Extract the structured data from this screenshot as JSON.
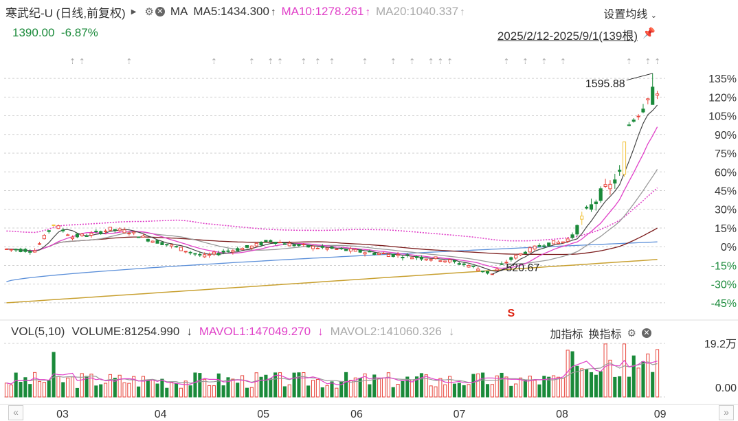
{
  "header": {
    "title": "寒武纪-U (日线,前复权)",
    "ma_label": "MA",
    "ma5": "MA5:1434.300",
    "ma10": "MA10:1278.261",
    "ma20": "MA20:1040.337",
    "settings_label": "设置均线",
    "price": "1390.00",
    "change": "-6.87%",
    "range": "2025/2/12-2025/9/1(139根)"
  },
  "volume_header": {
    "vol_label": "VOL(5,10)",
    "volume": "VOLUME:81254.990",
    "mavol1": "MAVOL1:147049.270",
    "mavol2": "MAVOL2:141060.326",
    "add_indicator": "加指标",
    "switch_indicator": "换指标"
  },
  "colors": {
    "up": "#e8453c",
    "down": "#1a8a3a",
    "ma5": "#444444",
    "ma10": "#e040c8",
    "ma20": "#999999",
    "ma60": "#7a1a1a",
    "ma120": "#5b8fd9",
    "ma250": "#c8a030",
    "limit_up": "#f2c23a"
  },
  "chart_data": {
    "type": "candlestick",
    "y_axis_labels": [
      "135%",
      "120%",
      "105%",
      "90%",
      "75%",
      "60%",
      "45%",
      "30%",
      "15%",
      "0%",
      "-15%",
      "-30%",
      "-45%"
    ],
    "y_ticks": [
      135,
      120,
      105,
      90,
      75,
      60,
      45,
      30,
      15,
      0,
      -15,
      -30,
      -45
    ],
    "ylim": [
      -50,
      140
    ],
    "x_labels": [
      "03",
      "04",
      "05",
      "06",
      "07",
      "08",
      "09"
    ],
    "x_label_positions": [
      12,
      33,
      55,
      75,
      97,
      119,
      140
    ],
    "n_bars": 139,
    "annotations": [
      {
        "text": "1595.88",
        "bar": 137,
        "pct": 139.0
      },
      {
        "text": "520.67",
        "bar": 103,
        "pct": -22.0
      }
    ],
    "volume": {
      "max_label": "19.2万",
      "min_label": "0.00",
      "ylim": [
        0,
        19.2
      ]
    }
  }
}
